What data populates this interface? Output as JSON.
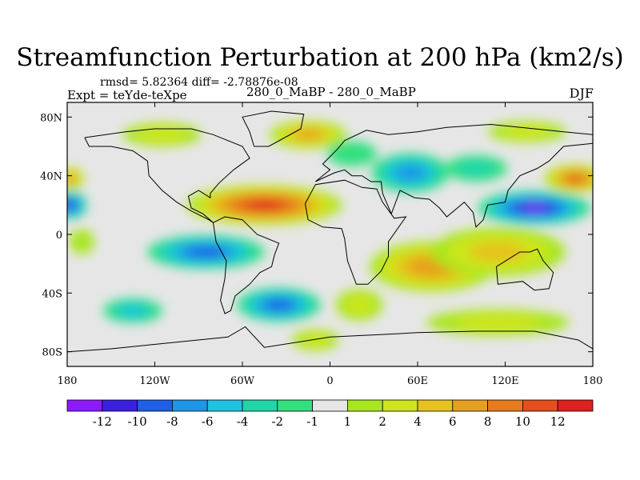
{
  "header": {
    "title": "Streamfunction Perturbation at 200 hPa (km2/s)",
    "stats": "rmsd= 5.82364 diff= -2.78876e-08",
    "left_label": "Expt = teYde-teXpe",
    "center_label": "280_0_MaBP - 280_0_MaBP",
    "right_label": "DJF"
  },
  "chart_data": {
    "type": "heatmap",
    "title": "Streamfunction Perturbation at 200 hPa (km2/s)",
    "x_range": [
      -180,
      180
    ],
    "y_range": [
      -90,
      90
    ],
    "x_ticks": [
      {
        "value": -180,
        "label": "180"
      },
      {
        "value": -120,
        "label": "120W"
      },
      {
        "value": -60,
        "label": "60W"
      },
      {
        "value": 0,
        "label": "0"
      },
      {
        "value": 60,
        "label": "60E"
      },
      {
        "value": 120,
        "label": "120E"
      },
      {
        "value": 180,
        "label": "180"
      }
    ],
    "y_ticks": [
      {
        "value": 80,
        "label": "80N"
      },
      {
        "value": 40,
        "label": "40N"
      },
      {
        "value": 0,
        "label": "0"
      },
      {
        "value": -40,
        "label": "40S"
      },
      {
        "value": -80,
        "label": "80S"
      }
    ],
    "colorbar": {
      "colors": [
        "#8c1aff",
        "#3a1fe0",
        "#1f5fe6",
        "#1f95e6",
        "#1fc2e0",
        "#1fd6a8",
        "#33e080",
        "#e6e6e6",
        "#a8e61f",
        "#cde61f",
        "#e6c21f",
        "#e6a01f",
        "#e67a1f",
        "#e64d1f",
        "#e01f1f"
      ],
      "labels": [
        "-12",
        "-10",
        "-8",
        "-6",
        "-4",
        "-2",
        "-1",
        "1",
        "2",
        "4",
        "6",
        "8",
        "10",
        "12"
      ]
    },
    "anomalies": [
      {
        "lon": -45,
        "lat": 20,
        "rx": 55,
        "ry": 14,
        "value": 13
      },
      {
        "lon": -15,
        "lat": 68,
        "rx": 28,
        "ry": 10,
        "value": 7
      },
      {
        "lon": -115,
        "lat": 68,
        "rx": 30,
        "ry": 9,
        "value": 3
      },
      {
        "lon": 135,
        "lat": 70,
        "rx": 30,
        "ry": 8,
        "value": 3
      },
      {
        "lon": 168,
        "lat": 38,
        "rx": 22,
        "ry": 10,
        "value": 11
      },
      {
        "lon": -178,
        "lat": 38,
        "rx": 10,
        "ry": 8,
        "value": 8
      },
      {
        "lon": 70,
        "lat": -22,
        "rx": 45,
        "ry": 18,
        "value": 8
      },
      {
        "lon": 115,
        "lat": -12,
        "rx": 50,
        "ry": 18,
        "value": 5
      },
      {
        "lon": 115,
        "lat": -60,
        "rx": 55,
        "ry": 10,
        "value": 3
      },
      {
        "lon": -10,
        "lat": -72,
        "rx": 18,
        "ry": 8,
        "value": 3
      },
      {
        "lon": 20,
        "lat": -48,
        "rx": 18,
        "ry": 12,
        "value": 3
      },
      {
        "lon": -170,
        "lat": -5,
        "rx": 10,
        "ry": 10,
        "value": 2
      },
      {
        "lon": -85,
        "lat": -12,
        "rx": 42,
        "ry": 12,
        "value": -10
      },
      {
        "lon": -35,
        "lat": -48,
        "rx": 30,
        "ry": 12,
        "value": -10
      },
      {
        "lon": -135,
        "lat": -52,
        "rx": 22,
        "ry": 9,
        "value": -5
      },
      {
        "lon": 55,
        "lat": 42,
        "rx": 28,
        "ry": 14,
        "value": -8
      },
      {
        "lon": 140,
        "lat": 18,
        "rx": 40,
        "ry": 12,
        "value": -13
      },
      {
        "lon": 100,
        "lat": 45,
        "rx": 24,
        "ry": 10,
        "value": -3
      },
      {
        "lon": 15,
        "lat": 55,
        "rx": 20,
        "ry": 10,
        "value": -2
      },
      {
        "lon": -178,
        "lat": 20,
        "rx": 12,
        "ry": 10,
        "value": -12
      }
    ]
  }
}
